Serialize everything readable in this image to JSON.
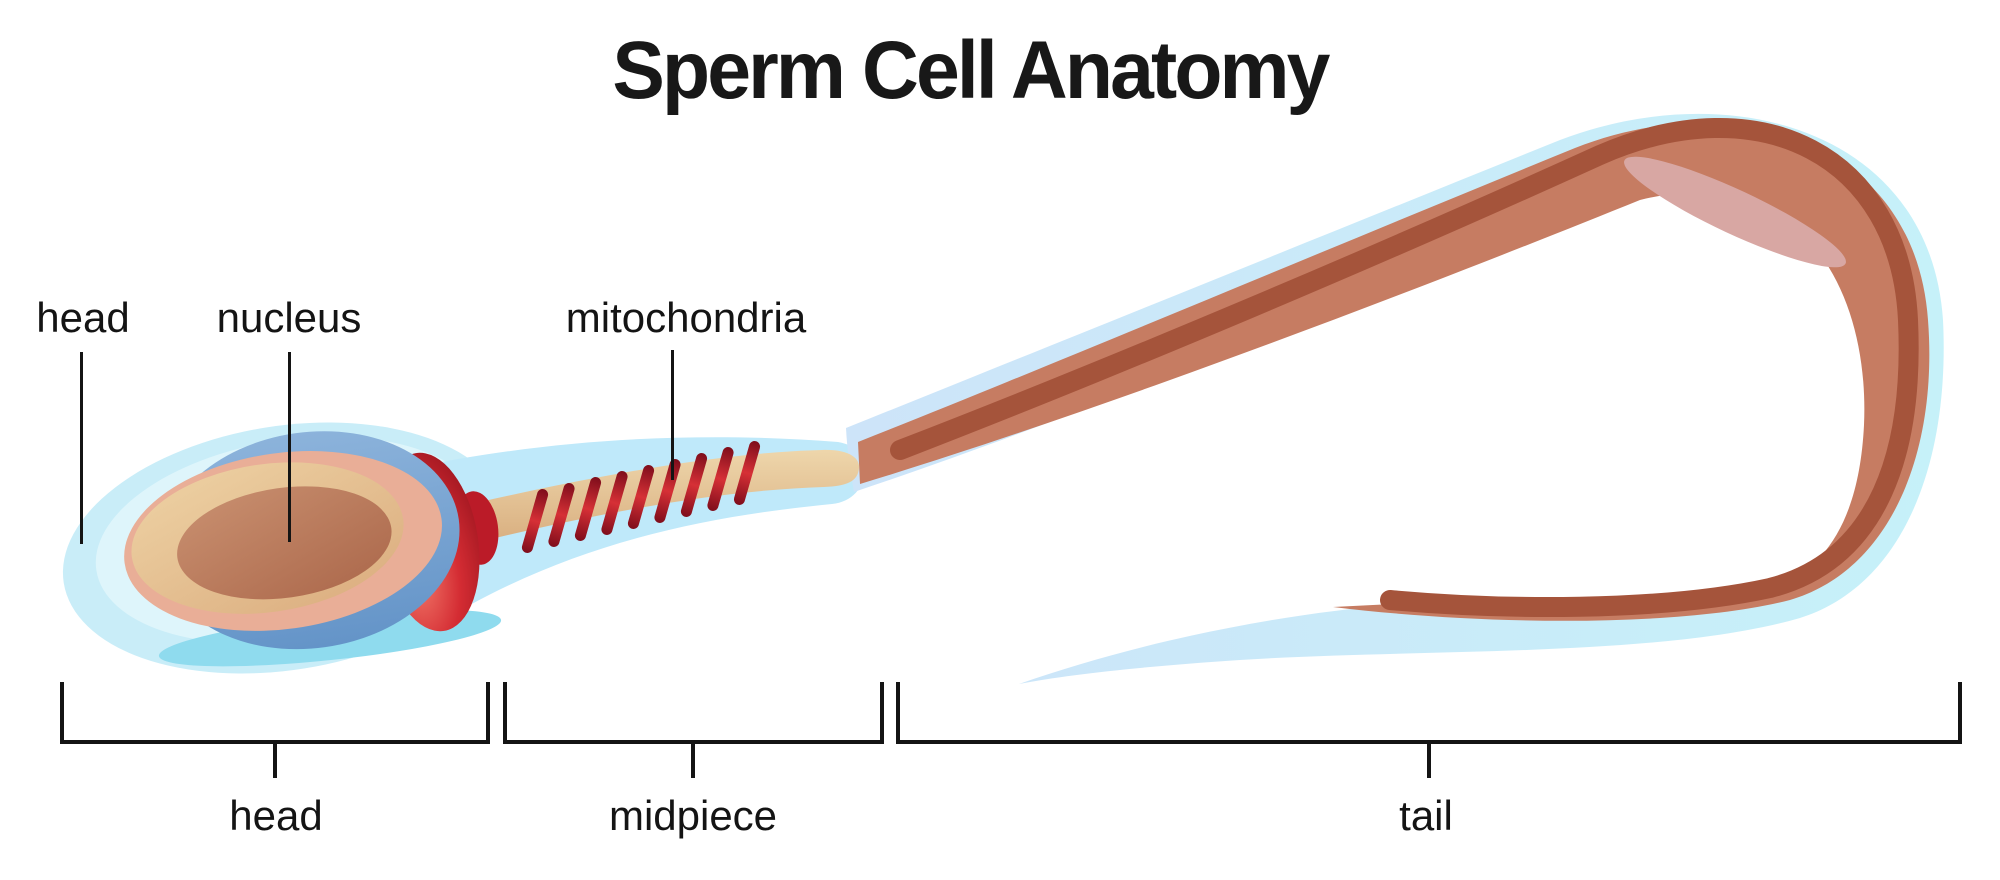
{
  "title": "Sperm Cell Anatomy",
  "callouts": [
    {
      "id": "head",
      "label": "head"
    },
    {
      "id": "nucleus",
      "label": "nucleus"
    },
    {
      "id": "mitochondria",
      "label": "mitochondria"
    }
  ],
  "regions": [
    {
      "id": "head",
      "label": "head"
    },
    {
      "id": "midpiece",
      "label": "midpiece"
    },
    {
      "id": "tail",
      "label": "tail"
    }
  ],
  "illustration": {
    "subject": "sperm cell",
    "mitochondria_coil_count": 9
  },
  "colors": {
    "background": "#ffffff",
    "text": "#141414",
    "membrane_cyan": "#c9edf8",
    "membrane_inner": "#def5fb",
    "membrane_tail_left": "#cde4f9",
    "membrane_tail_right": "#c6f1f9",
    "sheath_cyan": "#bfe9fa",
    "under_head_wave": "#8fdbee",
    "head_blue_light": "#8cb3db",
    "head_blue": "#6494c8",
    "head_salmon": "#e9ae97",
    "nucleus_tan_light": "#eed2a4",
    "nucleus_tan": "#ddb183",
    "nucleus_brown_light": "#c99070",
    "nucleus_brown": "#ae6b4e",
    "acrosome_red_light": "#f2796a",
    "acrosome_red": "#d42c33",
    "acrosome_red_dark": "#8e0f1a",
    "neck_knob_red": "#bb1b28",
    "shaft_tan_light": "#eed6ab",
    "shaft_tan": "#d9af80",
    "coil_red_dark": "#7e0d1b",
    "coil_red": "#d63036",
    "tail_salmon": "#c67c62",
    "tail_core": "#a5543b",
    "tail_highlight": "#d8a7a3"
  }
}
